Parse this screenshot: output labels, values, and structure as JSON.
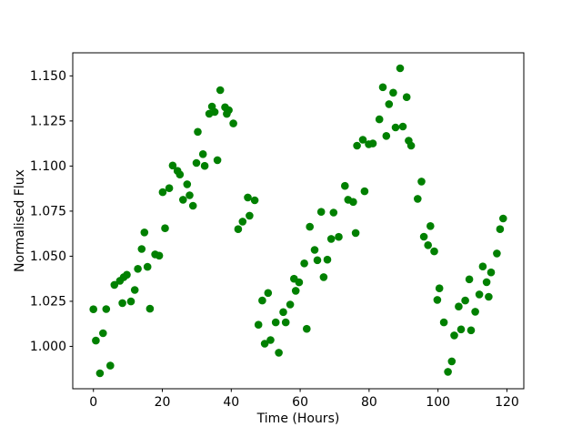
{
  "figure": {
    "background": "#ffffff"
  },
  "chart_data": {
    "type": "scatter",
    "xlabel": "Time (Hours)",
    "ylabel": "Normalised Flux",
    "marker_color": "#008000",
    "marker_radius": 4.3,
    "grid": false,
    "xlim": [
      -6.0,
      124.9
    ],
    "ylim": [
      0.9765,
      1.1628
    ],
    "x_ticks": {
      "values": [
        0,
        20,
        40,
        60,
        80,
        100,
        120
      ],
      "labels": [
        "0",
        "20",
        "40",
        "60",
        "80",
        "100",
        "120"
      ]
    },
    "y_ticks": {
      "values": [
        1.0,
        1.025,
        1.05,
        1.075,
        1.1,
        1.125,
        1.15
      ],
      "labels": [
        "1.000",
        "1.025",
        "1.050",
        "1.075",
        "1.100",
        "1.125",
        "1.150"
      ]
    },
    "points": [
      [
        0.0,
        1.0206
      ],
      [
        0.7,
        1.0032
      ],
      [
        1.9,
        0.9851
      ],
      [
        2.8,
        1.0073
      ],
      [
        3.7,
        1.0207
      ],
      [
        4.9,
        0.9893
      ],
      [
        6.1,
        1.0341
      ],
      [
        7.7,
        1.0364
      ],
      [
        8.4,
        1.024
      ],
      [
        8.8,
        1.0384
      ],
      [
        9.7,
        1.0397
      ],
      [
        10.9,
        1.0249
      ],
      [
        12.0,
        1.0313
      ],
      [
        12.9,
        1.043
      ],
      [
        14.0,
        1.054
      ],
      [
        14.8,
        1.0632
      ],
      [
        15.7,
        1.0441
      ],
      [
        16.4,
        1.0209
      ],
      [
        17.9,
        1.051
      ],
      [
        19.1,
        1.0503
      ],
      [
        20.1,
        1.0855
      ],
      [
        20.8,
        1.0655
      ],
      [
        22.0,
        1.0877
      ],
      [
        23.0,
        1.1003
      ],
      [
        24.4,
        1.0973
      ],
      [
        25.1,
        1.0953
      ],
      [
        26.0,
        1.0813
      ],
      [
        27.2,
        1.0899
      ],
      [
        27.9,
        1.0838
      ],
      [
        28.9,
        1.078
      ],
      [
        29.9,
        1.1017
      ],
      [
        30.3,
        1.119
      ],
      [
        31.8,
        1.1066
      ],
      [
        32.3,
        1.1001
      ],
      [
        33.6,
        1.129
      ],
      [
        34.4,
        1.133
      ],
      [
        35.2,
        1.13
      ],
      [
        36.0,
        1.1033
      ],
      [
        36.8,
        1.1421
      ],
      [
        38.2,
        1.1326
      ],
      [
        38.7,
        1.1289
      ],
      [
        39.3,
        1.131
      ],
      [
        40.6,
        1.1236
      ],
      [
        42.0,
        1.065
      ],
      [
        43.3,
        1.0692
      ],
      [
        44.8,
        1.0826
      ],
      [
        45.3,
        1.0725
      ],
      [
        46.8,
        1.081
      ],
      [
        47.9,
        1.012
      ],
      [
        49.0,
        1.0254
      ],
      [
        49.7,
        1.0015
      ],
      [
        50.7,
        1.0296
      ],
      [
        51.4,
        1.0035
      ],
      [
        52.9,
        1.0133
      ],
      [
        53.8,
        0.9965
      ],
      [
        55.1,
        1.019
      ],
      [
        55.8,
        1.0133
      ],
      [
        57.1,
        1.0232
      ],
      [
        58.2,
        1.0375
      ],
      [
        58.7,
        1.0308
      ],
      [
        59.7,
        1.0355
      ],
      [
        61.2,
        1.046
      ],
      [
        61.9,
        1.0097
      ],
      [
        62.8,
        1.0663
      ],
      [
        64.2,
        1.0535
      ],
      [
        65.0,
        1.0478
      ],
      [
        66.1,
        1.0746
      ],
      [
        66.8,
        1.0384
      ],
      [
        67.9,
        1.0481
      ],
      [
        69.0,
        1.0596
      ],
      [
        69.7,
        1.0742
      ],
      [
        71.2,
        1.0607
      ],
      [
        73.0,
        1.089
      ],
      [
        73.9,
        1.0813
      ],
      [
        75.4,
        1.0801
      ],
      [
        76.1,
        1.0629
      ],
      [
        76.5,
        1.1113
      ],
      [
        78.2,
        1.1146
      ],
      [
        78.7,
        1.086
      ],
      [
        79.9,
        1.1121
      ],
      [
        81.1,
        1.1125
      ],
      [
        83.0,
        1.1259
      ],
      [
        84.0,
        1.1437
      ],
      [
        85.0,
        1.1167
      ],
      [
        85.8,
        1.1343
      ],
      [
        87.0,
        1.1407
      ],
      [
        87.7,
        1.1214
      ],
      [
        89.0,
        1.1542
      ],
      [
        89.8,
        1.1219
      ],
      [
        90.9,
        1.1382
      ],
      [
        91.5,
        1.1141
      ],
      [
        92.2,
        1.1113
      ],
      [
        94.1,
        1.0818
      ],
      [
        95.2,
        1.0914
      ],
      [
        95.9,
        1.0608
      ],
      [
        97.1,
        1.0561
      ],
      [
        97.8,
        1.0667
      ],
      [
        98.9,
        1.0527
      ],
      [
        99.8,
        1.0258
      ],
      [
        100.4,
        1.0322
      ],
      [
        101.7,
        1.0133
      ],
      [
        102.9,
        0.9859
      ],
      [
        104.0,
        0.9917
      ],
      [
        104.7,
        1.0061
      ],
      [
        106.0,
        1.0221
      ],
      [
        106.7,
        1.0094
      ],
      [
        107.9,
        1.0254
      ],
      [
        109.1,
        1.0372
      ],
      [
        109.6,
        1.0089
      ],
      [
        110.8,
        1.0192
      ],
      [
        112.0,
        1.0288
      ],
      [
        113.0,
        1.0443
      ],
      [
        114.1,
        1.0356
      ],
      [
        114.7,
        1.0275
      ],
      [
        115.4,
        1.041
      ],
      [
        117.1,
        1.0515
      ],
      [
        118.0,
        1.065
      ],
      [
        118.9,
        1.0709
      ]
    ]
  }
}
